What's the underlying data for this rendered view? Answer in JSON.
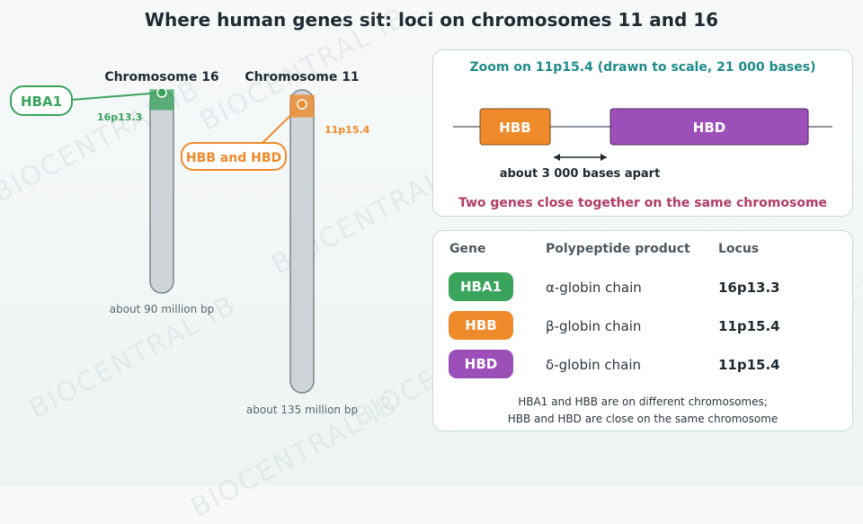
{
  "title": "Where human genes sit: loci on chromosomes 11 and 16",
  "watermark": "BIOCENTRAL IB",
  "colors": {
    "hba1": "#3aa35c",
    "hbb": "#ee8a2a",
    "hbd": "#9c4fb8",
    "zoom_title": "#1f8a8a",
    "caption": "#b03c62",
    "chromosome": "#cfd4d8"
  },
  "chromosomes": [
    {
      "name": "Chromosome 16",
      "size_label": "about 90 million bp",
      "locus": "16p13.3",
      "callout": "HBA1"
    },
    {
      "name": "Chromosome 11",
      "size_label": "about 135 million bp",
      "locus": "11p15.4",
      "callout": "HBB and HBD"
    }
  ],
  "zoom": {
    "title": "Zoom on 11p15.4 (drawn to scale, 21 000 bases)",
    "genes": [
      {
        "label": "HBB"
      },
      {
        "label": "HBD"
      }
    ],
    "gap_label": "about 3 000 bases apart",
    "caption": "Two genes close together on the same chromosome"
  },
  "table": {
    "headers": [
      "Gene",
      "Polypeptide product",
      "Locus"
    ],
    "rows": [
      {
        "gene": "HBA1",
        "product": "α-globin chain",
        "locus": "16p13.3"
      },
      {
        "gene": "HBB",
        "product": "β-globin chain",
        "locus": "11p15.4"
      },
      {
        "gene": "HBD",
        "product": "δ-globin chain",
        "locus": "11p15.4"
      }
    ],
    "note": [
      "HBA1 and HBB are on different chromosomes;",
      "HBB and HBD are close on the same chromosome"
    ]
  }
}
